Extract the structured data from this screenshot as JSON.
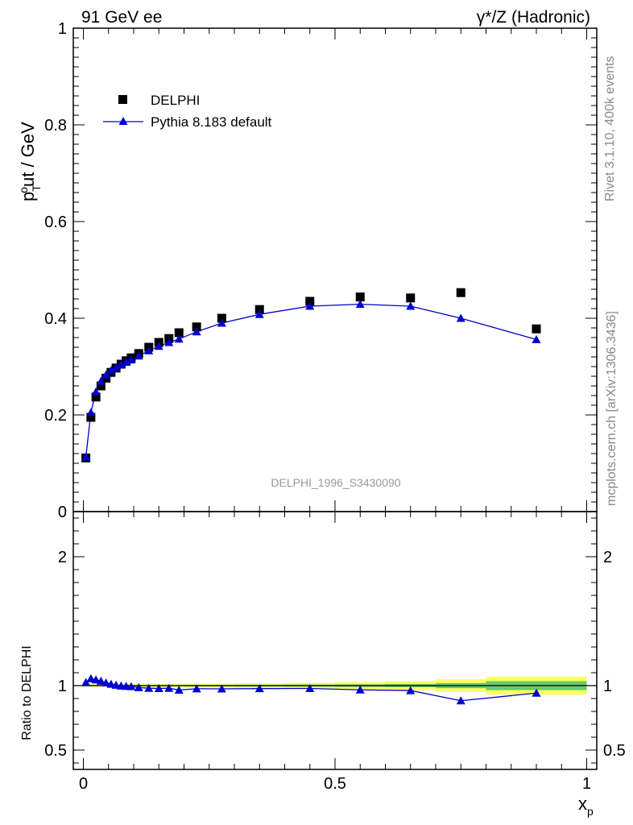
{
  "header": {
    "left": "91 GeV ee",
    "right": "γ*/Z (Hadronic)"
  },
  "side": {
    "rivet": "Rivet 3.1.10,  400k events",
    "mcplots": "mcplots.cern.ch [arXiv:1306.3436]"
  },
  "watermark": "DELPHI_1996_S3430090",
  "colors": {
    "data": "#000000",
    "mc": "#0000cc",
    "band_stat": "#66cc66",
    "band_tot": "#ffff66"
  },
  "chart_data": [
    {
      "type": "scatter",
      "panel": "main",
      "ylabel": "p_T^out / GeV",
      "ylim": [
        0,
        1
      ],
      "xlim": [
        -0.02,
        1.02
      ],
      "yticks": [
        0,
        0.2,
        0.4,
        0.6,
        0.8,
        1
      ],
      "ytick_labels": [
        "0",
        "0.2",
        "0.4",
        "0.6",
        "0.8",
        "1"
      ],
      "legend": {
        "position": "top-left",
        "entries": [
          "DELPHI",
          "Pythia 8.183 default"
        ]
      },
      "series": [
        {
          "name": "DELPHI",
          "marker": "square",
          "x": [
            0.005,
            0.015,
            0.025,
            0.035,
            0.045,
            0.055,
            0.065,
            0.075,
            0.085,
            0.095,
            0.11,
            0.13,
            0.15,
            0.17,
            0.19,
            0.225,
            0.275,
            0.35,
            0.45,
            0.55,
            0.65,
            0.75,
            0.9
          ],
          "y": [
            0.111,
            0.195,
            0.237,
            0.26,
            0.276,
            0.288,
            0.297,
            0.305,
            0.312,
            0.318,
            0.327,
            0.34,
            0.35,
            0.358,
            0.37,
            0.382,
            0.4,
            0.418,
            0.435,
            0.444,
            0.442,
            0.453,
            0.378
          ]
        },
        {
          "name": "Pythia 8.183 default",
          "marker": "triangle",
          "x": [
            0.005,
            0.015,
            0.025,
            0.035,
            0.045,
            0.055,
            0.065,
            0.075,
            0.085,
            0.095,
            0.11,
            0.13,
            0.15,
            0.17,
            0.19,
            0.225,
            0.275,
            0.35,
            0.45,
            0.55,
            0.65,
            0.75,
            0.9
          ],
          "y": [
            0.113,
            0.205,
            0.248,
            0.27,
            0.283,
            0.292,
            0.298,
            0.304,
            0.309,
            0.314,
            0.322,
            0.333,
            0.342,
            0.35,
            0.357,
            0.372,
            0.39,
            0.408,
            0.425,
            0.429,
            0.425,
            0.4,
            0.356
          ]
        }
      ]
    },
    {
      "type": "line",
      "panel": "ratio",
      "ylabel": "Ratio to DELPHI",
      "xlabel": "x_p",
      "ylim": [
        0.35,
        2.35
      ],
      "xlim": [
        -0.02,
        1.02
      ],
      "xticks": [
        0,
        0.5,
        1
      ],
      "xtick_labels": [
        "0",
        "0.5",
        "1"
      ],
      "yticks": [
        0.5,
        1,
        2
      ],
      "ytick_labels": [
        "0.5",
        "1",
        "2"
      ],
      "x": [
        0.005,
        0.015,
        0.025,
        0.035,
        0.045,
        0.055,
        0.065,
        0.075,
        0.085,
        0.095,
        0.11,
        0.13,
        0.15,
        0.17,
        0.19,
        0.225,
        0.275,
        0.35,
        0.45,
        0.55,
        0.65,
        0.75,
        0.9
      ],
      "ratio": [
        1.025,
        1.055,
        1.045,
        1.035,
        1.022,
        1.012,
        1.004,
        0.998,
        0.995,
        0.993,
        0.985,
        0.98,
        0.978,
        0.98,
        0.966,
        0.976,
        0.975,
        0.977,
        0.978,
        0.967,
        0.962,
        0.883,
        0.942
      ],
      "band_edges": [
        0,
        0.1,
        0.2,
        0.3,
        0.4,
        0.5,
        0.6,
        0.7,
        0.8,
        1.0
      ],
      "band_stat": [
        0.005,
        0.005,
        0.006,
        0.007,
        0.008,
        0.01,
        0.012,
        0.02,
        0.035
      ],
      "band_tot": [
        0.01,
        0.012,
        0.015,
        0.018,
        0.022,
        0.028,
        0.035,
        0.05,
        0.07
      ]
    }
  ]
}
